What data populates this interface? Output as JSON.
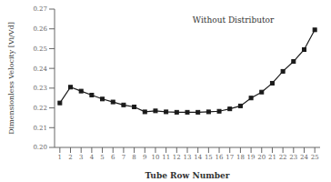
{
  "chart_data": {
    "type": "line",
    "xlabel": "Tube Row Number",
    "ylabel": "Dimensionless Velocity [Vi/Vd]",
    "annotation": "Without Distributor",
    "x": [
      1,
      2,
      3,
      4,
      5,
      6,
      7,
      8,
      9,
      10,
      11,
      12,
      13,
      14,
      15,
      16,
      17,
      18,
      19,
      20,
      21,
      22,
      23,
      24,
      25
    ],
    "values": [
      0.2225,
      0.2305,
      0.2285,
      0.2265,
      0.2245,
      0.223,
      0.2215,
      0.2205,
      0.218,
      0.2185,
      0.218,
      0.2178,
      0.2178,
      0.2178,
      0.218,
      0.2183,
      0.2195,
      0.221,
      0.225,
      0.228,
      0.2325,
      0.2385,
      0.2435,
      0.2495,
      0.2595
    ],
    "color": "#1a1a1a",
    "marker": "square",
    "xlim": [
      0.5,
      25.5
    ],
    "xticks": [
      1,
      2,
      3,
      4,
      5,
      6,
      7,
      8,
      9,
      10,
      11,
      12,
      13,
      14,
      15,
      16,
      17,
      18,
      19,
      20,
      21,
      22,
      23,
      24,
      25
    ],
    "ylim": [
      0.2,
      0.27
    ],
    "yticks": [
      {
        "value": 0.2,
        "label": "0.20"
      },
      {
        "value": 0.21,
        "label": "0.21"
      },
      {
        "value": 0.22,
        "label": "0.22"
      },
      {
        "value": 0.23,
        "label": "0.23"
      },
      {
        "value": 0.24,
        "label": "0.24"
      },
      {
        "value": 0.25,
        "label": "0.25"
      },
      {
        "value": 0.26,
        "label": "0.26"
      },
      {
        "value": 0.27,
        "label": "0.27"
      }
    ],
    "grid": false
  }
}
